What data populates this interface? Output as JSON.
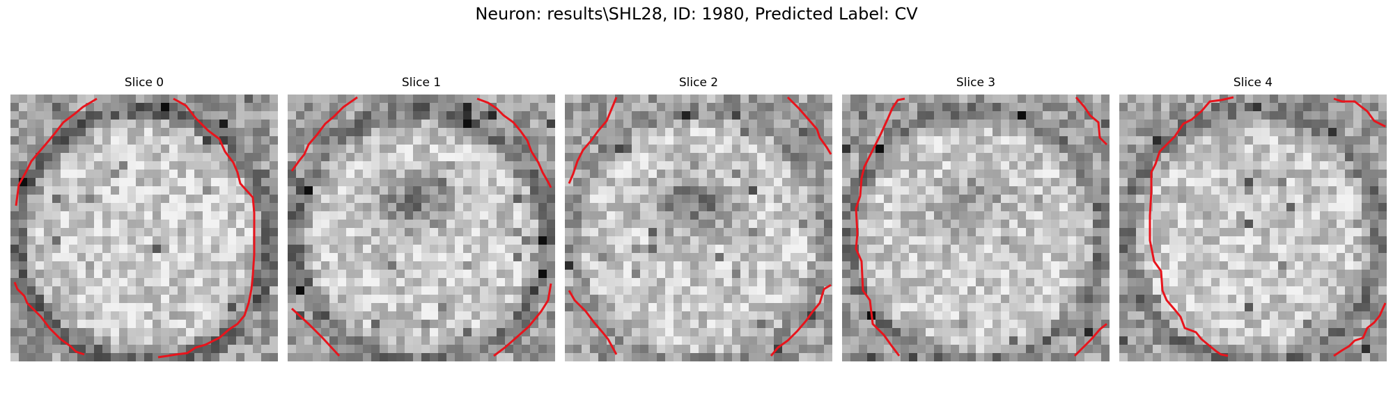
{
  "figure": {
    "title": "Neuron: results\\SHL28, ID: 1980, Predicted Label: CV",
    "contour_color": "#e8141c"
  },
  "slices": [
    {
      "label": "Slice 0",
      "center_dark": 0.0,
      "ring_strength": 0.9
    },
    {
      "label": "Slice 1",
      "center_dark": 0.75,
      "ring_strength": 0.8
    },
    {
      "label": "Slice 2",
      "center_dark": 0.8,
      "ring_strength": 0.4
    },
    {
      "label": "Slice 3",
      "center_dark": 0.45,
      "ring_strength": 0.7
    },
    {
      "label": "Slice 4",
      "center_dark": 0.1,
      "ring_strength": 0.7
    }
  ]
}
